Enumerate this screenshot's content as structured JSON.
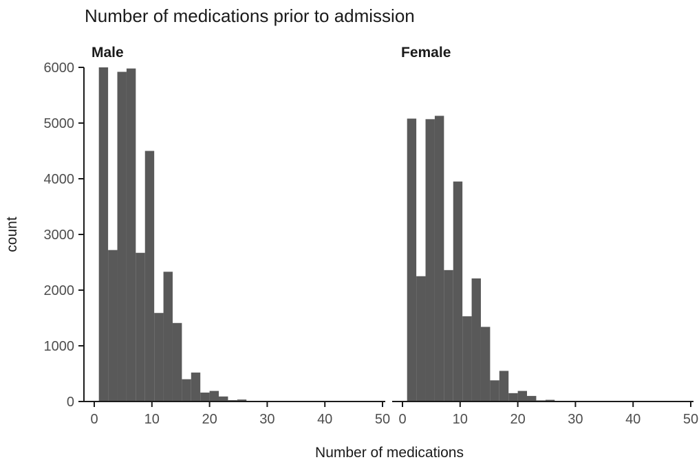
{
  "chart_data": {
    "type": "bar",
    "title": "Number of medications prior to admission",
    "xlabel": "Number of medications",
    "ylabel": "count",
    "xlim": [
      -1,
      50
    ],
    "ylim": [
      0,
      6000
    ],
    "x_ticks": [
      0,
      10,
      20,
      30,
      40,
      50
    ],
    "y_ticks": [
      0,
      1000,
      2000,
      3000,
      4000,
      5000,
      6000
    ],
    "bin_width": 1.6,
    "bin_start": 0.8,
    "grid": false,
    "bar_color": "#595959",
    "panels": [
      {
        "label": "Male",
        "values": [
          6000,
          2720,
          5920,
          5980,
          2670,
          4500,
          1590,
          2330,
          1410,
          400,
          520,
          160,
          190,
          90,
          25,
          35,
          8,
          6,
          4,
          3,
          2,
          2,
          1,
          1,
          1,
          1
        ]
      },
      {
        "label": "Female",
        "values": [
          5080,
          2250,
          5070,
          5130,
          2360,
          3950,
          1530,
          2210,
          1340,
          380,
          550,
          150,
          190,
          100,
          20,
          30,
          7,
          5,
          3,
          2,
          2,
          1,
          1,
          1,
          1,
          1
        ]
      }
    ]
  }
}
